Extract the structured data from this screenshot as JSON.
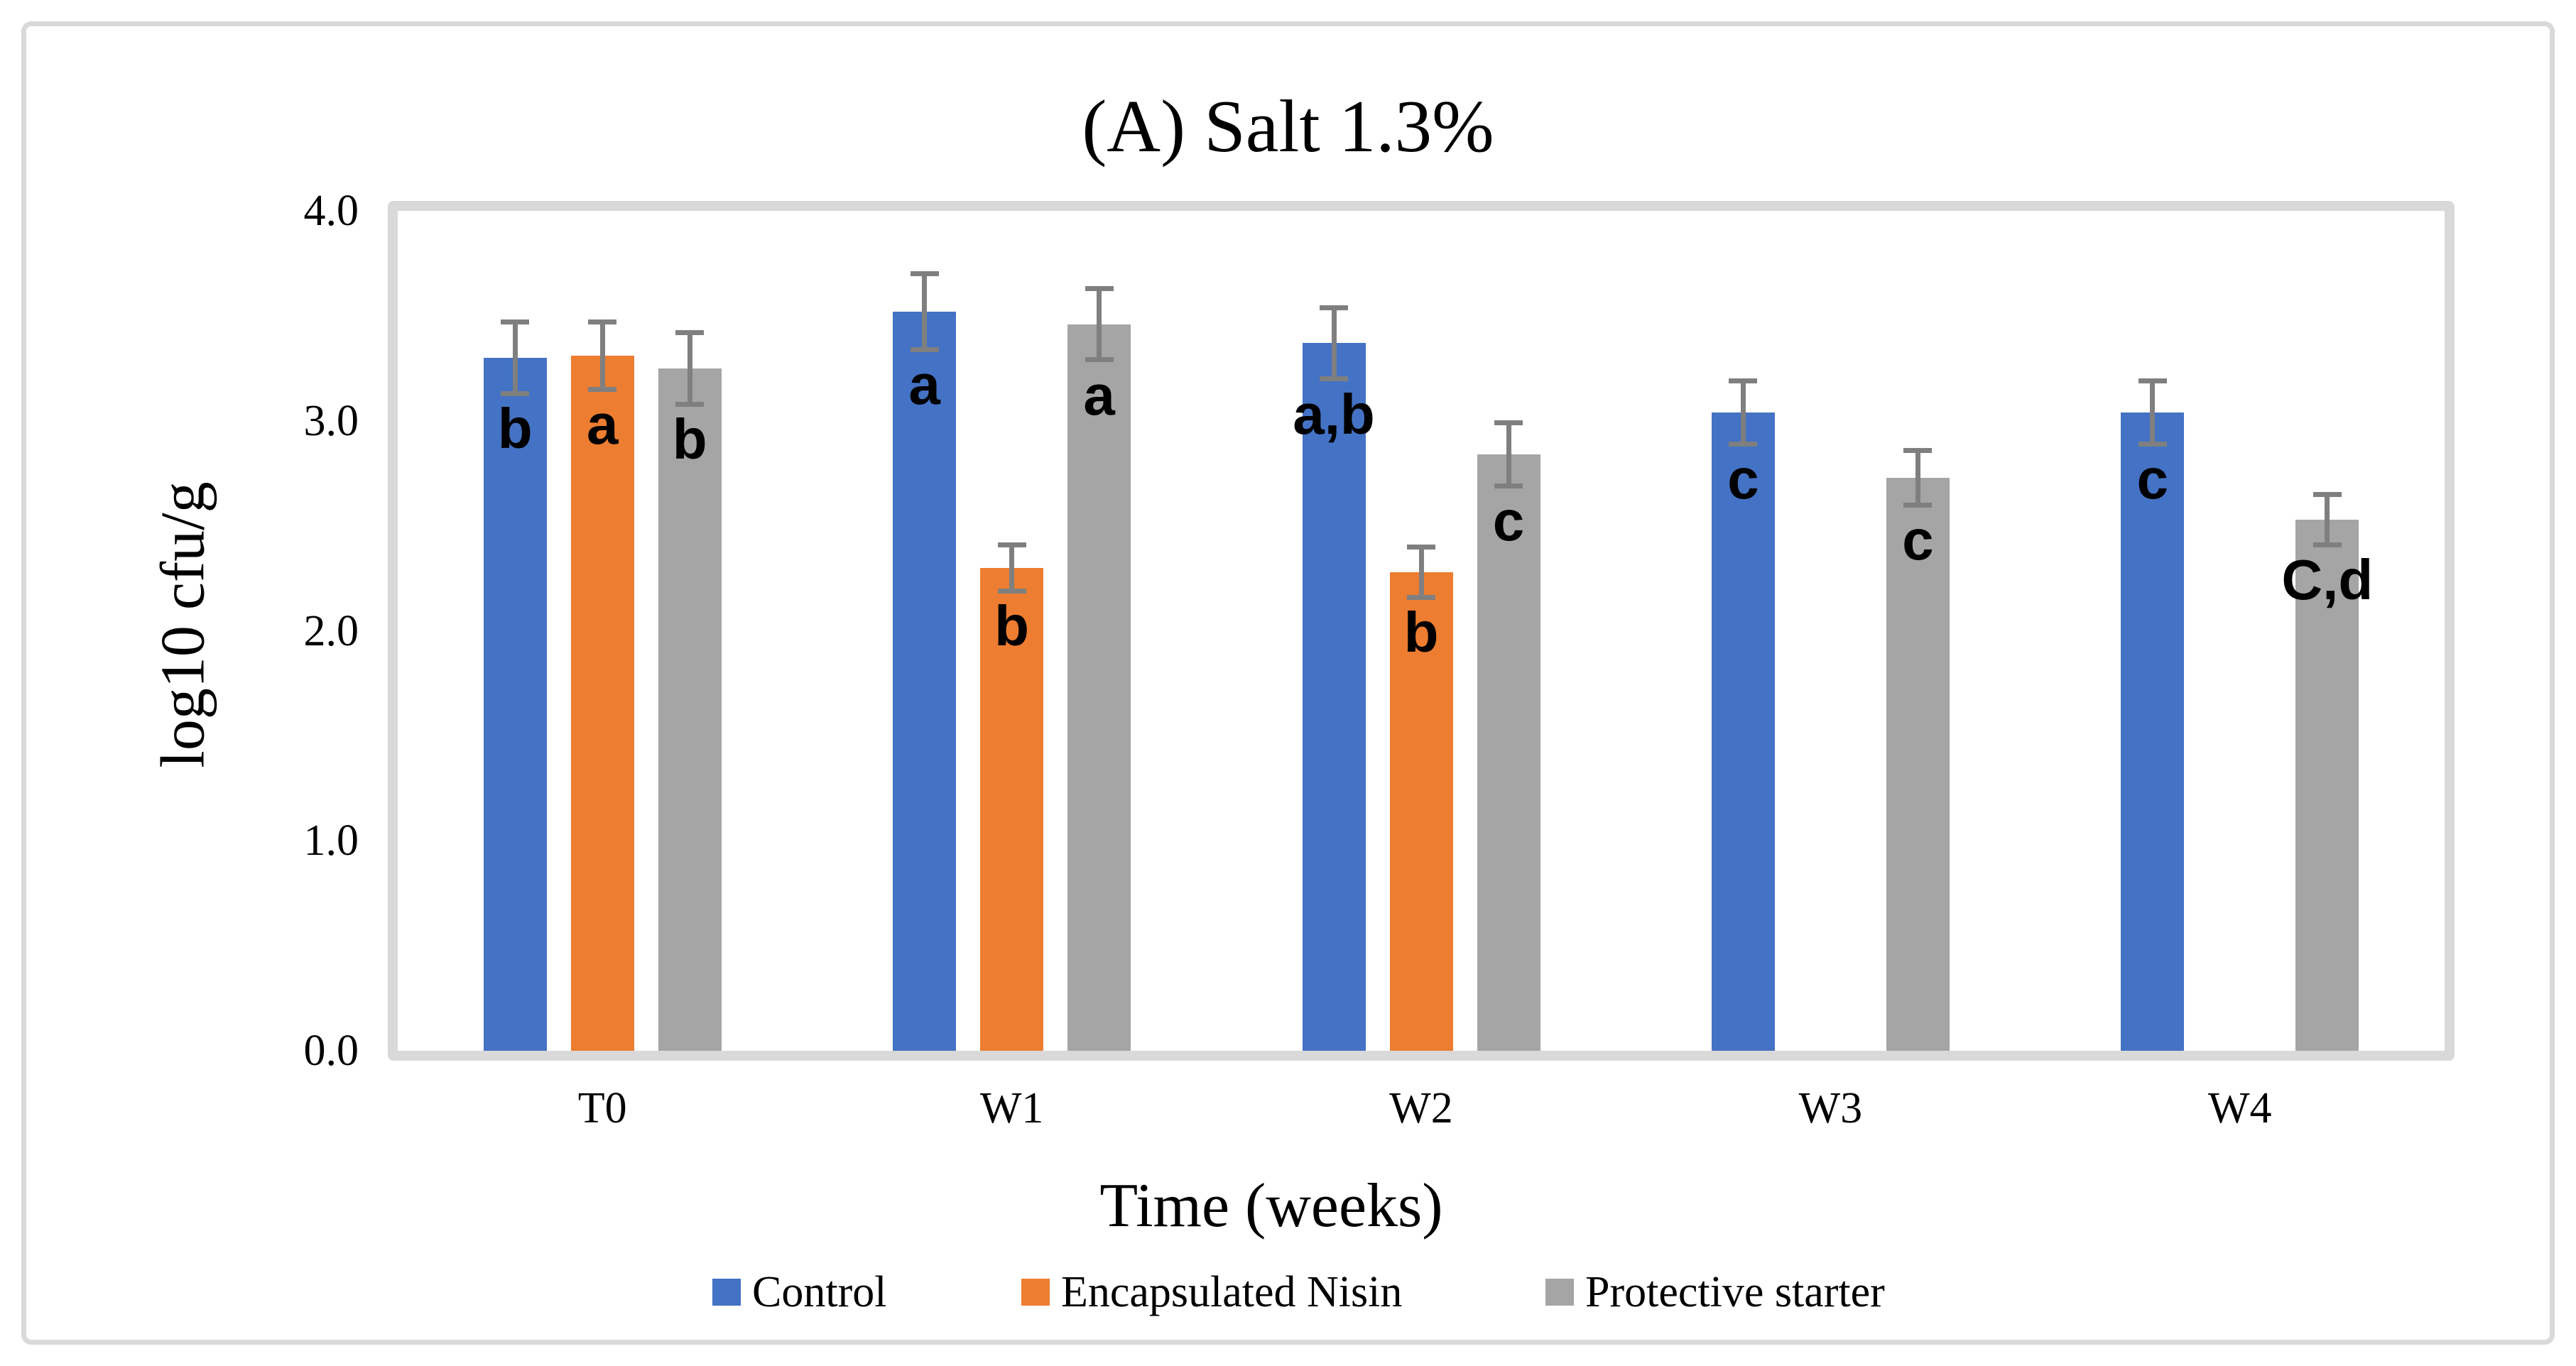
{
  "figure": {
    "title": "(A) Salt 1.3%"
  },
  "chart_data": {
    "type": "bar",
    "title": "(A) Salt 1.3%",
    "xlabel": "Time (weeks)",
    "ylabel": "log10 cfu/g",
    "ylim": [
      0.0,
      4.0
    ],
    "yticks": [
      4.0,
      3.0,
      2.0,
      1.0,
      0.0
    ],
    "ytick_labels": [
      "4.0",
      "3.0",
      "2.0",
      "1.0",
      "0.0"
    ],
    "categories": [
      "T0",
      "W1",
      "W2",
      "W3",
      "W4"
    ],
    "series": [
      {
        "name": "Control",
        "color": "#4472C4",
        "values": [
          3.3,
          3.52,
          3.37,
          3.04,
          3.04
        ],
        "errors": [
          0.17,
          0.18,
          0.17,
          0.15,
          0.15
        ],
        "letters": [
          "b",
          "a",
          "a,b",
          "c",
          "c"
        ]
      },
      {
        "name": "Encapsulated Nisin",
        "color": "#ED7D31",
        "values": [
          3.31,
          2.3,
          2.28,
          null,
          null
        ],
        "errors": [
          0.16,
          0.11,
          0.12,
          null,
          null
        ],
        "letters": [
          "a",
          "b",
          "b",
          null,
          null
        ]
      },
      {
        "name": "Protective starter",
        "color": "#A5A5A5",
        "values": [
          3.25,
          3.46,
          2.84,
          2.73,
          2.53
        ],
        "errors": [
          0.17,
          0.17,
          0.15,
          0.13,
          0.12
        ],
        "letters": [
          "b",
          "a",
          "c",
          "c",
          "C,d"
        ]
      }
    ],
    "error_bar_color": "#7F7F7F",
    "border_color": "#D9D9D9",
    "grid": false,
    "legend_position": "bottom"
  }
}
